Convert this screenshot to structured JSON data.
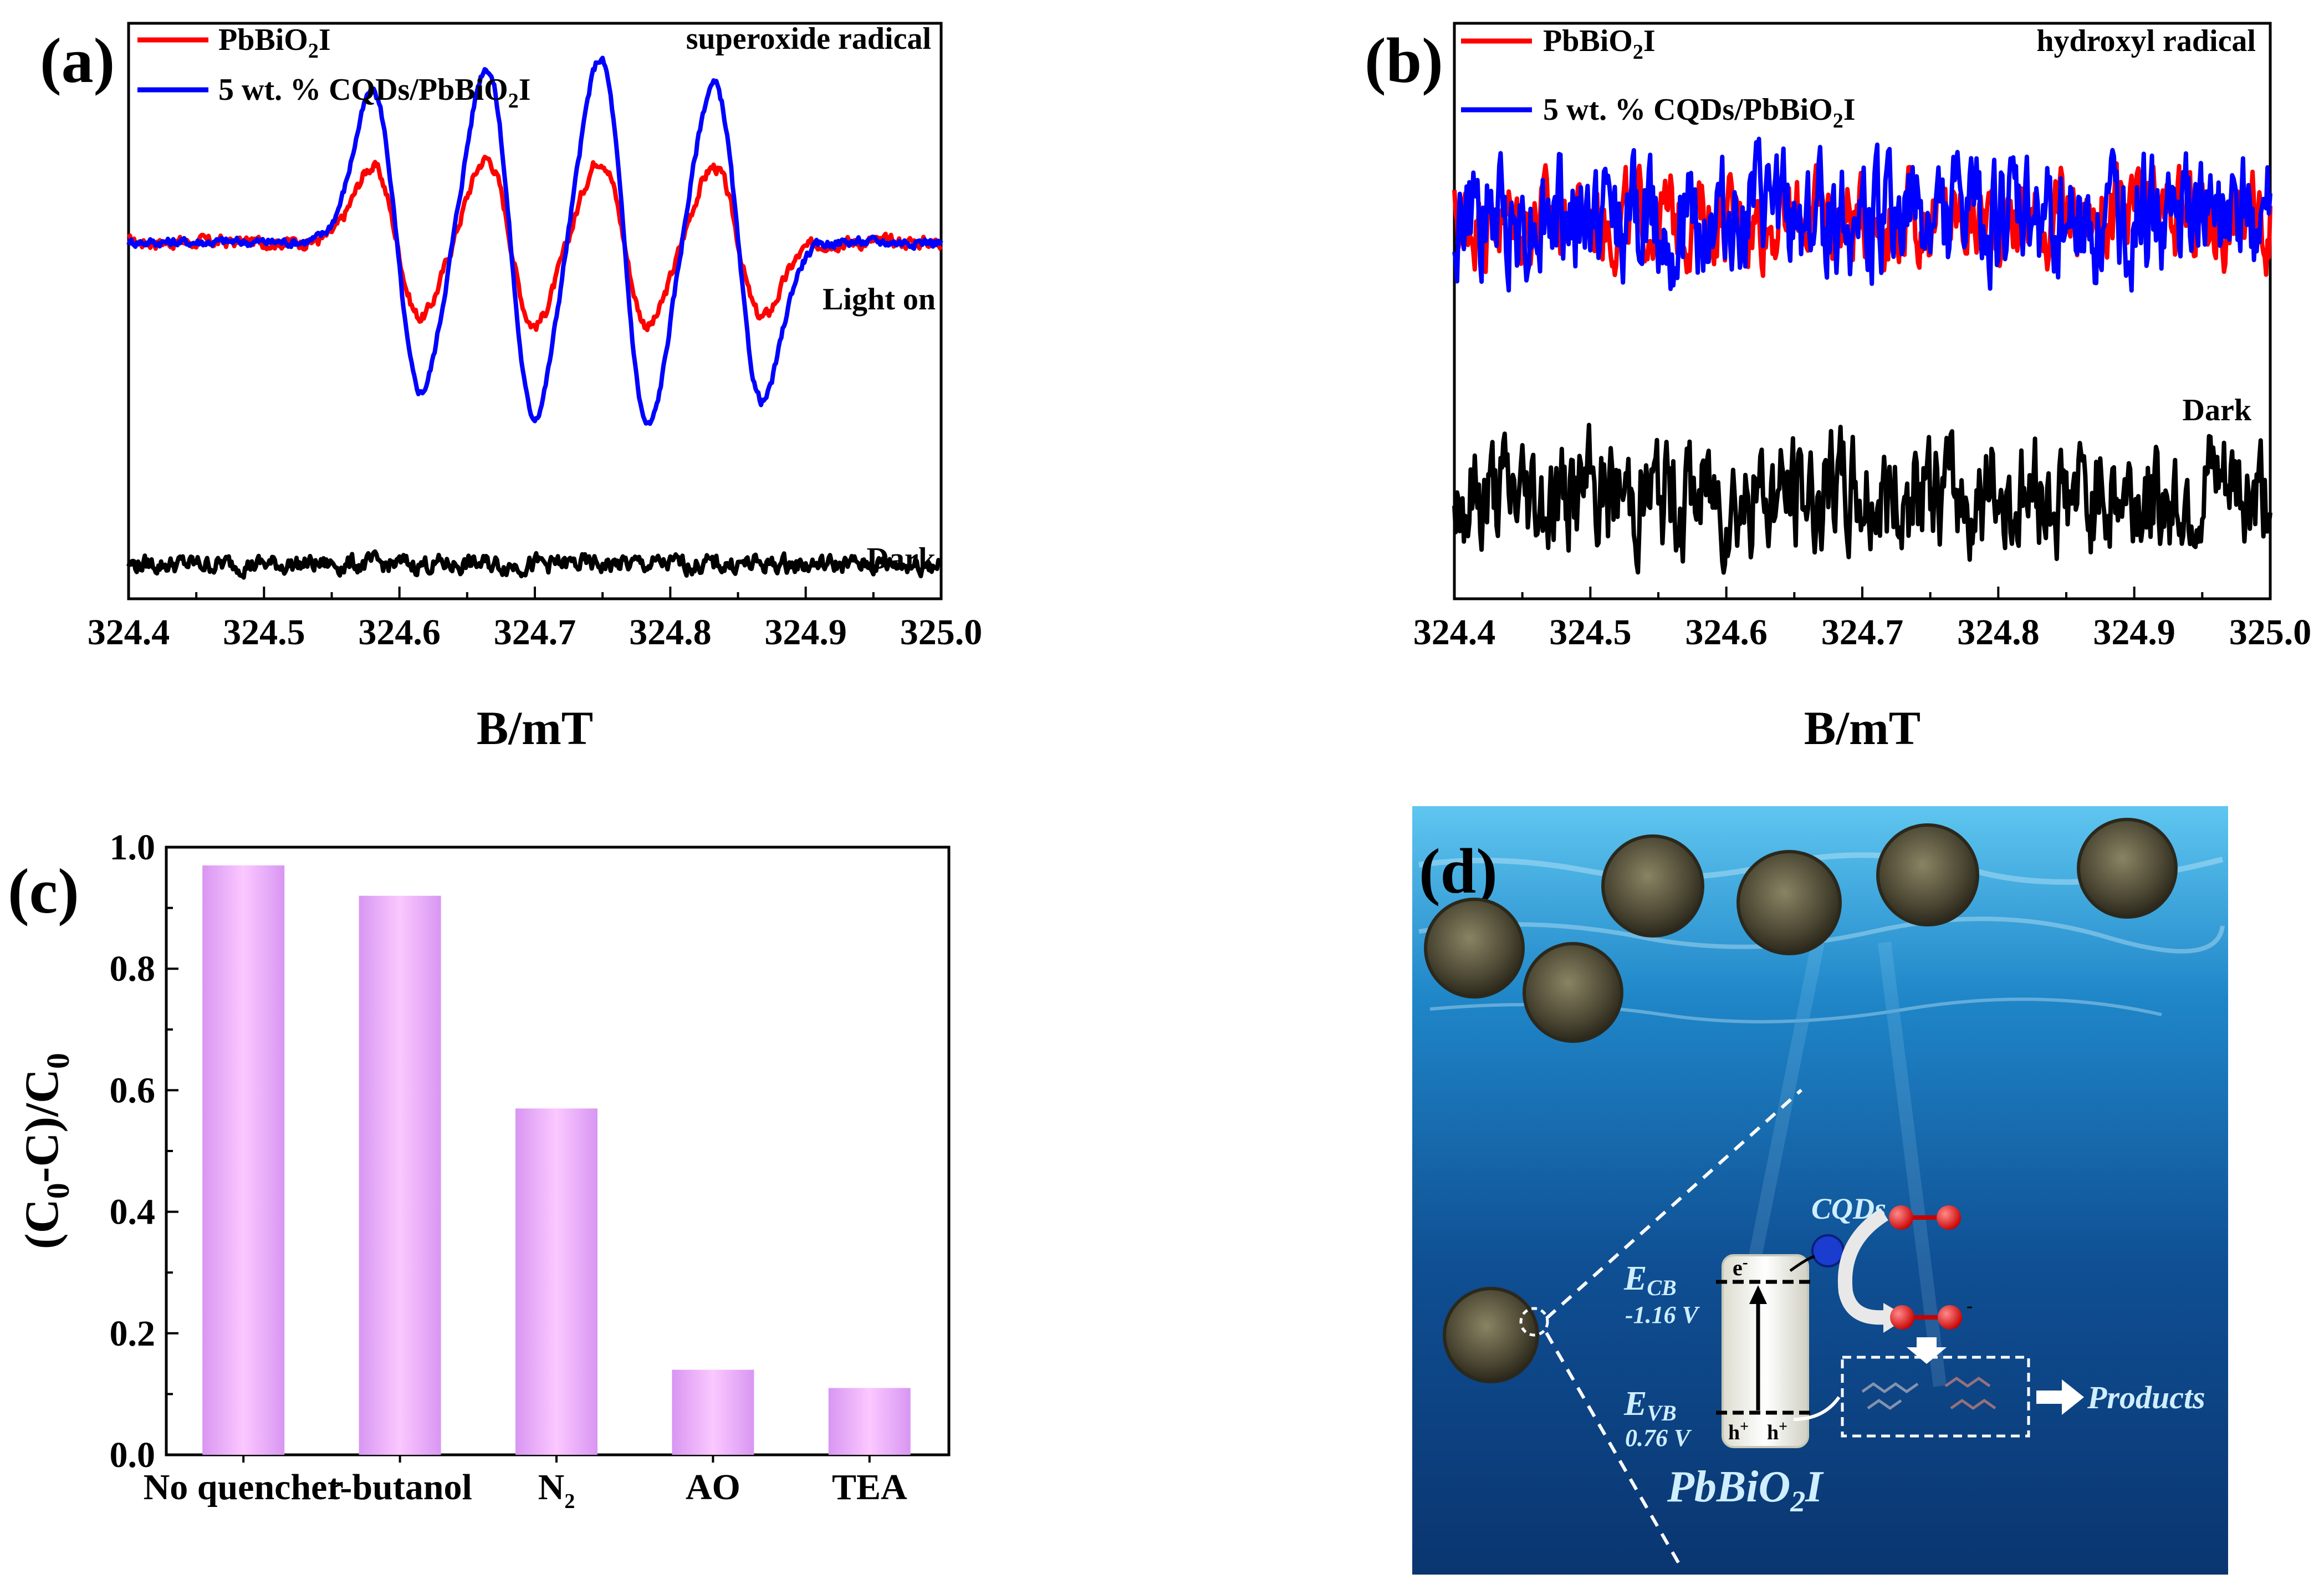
{
  "chart_data": [
    {
      "panel": "(a)",
      "type": "line",
      "title": "superoxide radical",
      "xlabel": "B/mT",
      "ylabel": "",
      "xlim": [
        324.4,
        325.0
      ],
      "xticks": [
        "324.4",
        "324.5",
        "324.6",
        "324.7",
        "324.8",
        "324.9",
        "325.0"
      ],
      "series": [
        {
          "name": "PbBiO2I",
          "label_main": "PbBiO",
          "label_sub": "2",
          "label_tail": "I",
          "color": "#ff0000",
          "offset": 0.62,
          "amplitude": 0.13,
          "noise": 0.008,
          "peaks": [
            0.18,
            0.2,
            0.2,
            0.18
          ]
        },
        {
          "name": "5 wt. % CQDs/PbBiO2I",
          "label_main": "5 wt. % CQDs/PbBiO",
          "label_sub": "2",
          "label_tail": "I",
          "color": "#0000ff",
          "offset": 0.62,
          "amplitude": 0.3,
          "noise": 0.006,
          "peaks": [
            0.36,
            0.42,
            0.44,
            0.38
          ]
        },
        {
          "name": "Dark",
          "color": "#000000",
          "offset": 0.06,
          "amplitude": 0.0,
          "noise": 0.012,
          "peaks": []
        }
      ],
      "annotations": [
        "Light on",
        "Dark"
      ]
    },
    {
      "panel": "(b)",
      "type": "line",
      "title": "hydroxyl radical",
      "xlabel": "B/mT",
      "ylabel": "",
      "xlim": [
        324.4,
        325.0
      ],
      "xticks": [
        "324.4",
        "324.5",
        "324.6",
        "324.7",
        "324.8",
        "324.9",
        "325.0"
      ],
      "series": [
        {
          "name": "PbBiO2I",
          "label_main": "PbBiO",
          "label_sub": "2",
          "label_tail": "I",
          "color": "#ff0000",
          "offset": 0.66,
          "noise": 0.055
        },
        {
          "name": "5 wt. % CQDs/PbBiO2I",
          "label_main": "5 wt. % CQDs/PbBiO",
          "label_sub": "2",
          "label_tail": "I",
          "color": "#0000ff",
          "offset": 0.66,
          "noise": 0.075
        },
        {
          "name": "Dark",
          "color": "#000000",
          "offset": 0.18,
          "noise": 0.075
        }
      ],
      "annotations": [
        "Dark"
      ]
    },
    {
      "panel": "(c)",
      "type": "bar",
      "title": "",
      "xlabel": "",
      "ylabel_parts": [
        "(C",
        "0",
        "-C)/C",
        "0"
      ],
      "ylim": [
        0.0,
        1.0
      ],
      "yticks": [
        "0.0",
        "0.2",
        "0.4",
        "0.6",
        "0.8",
        "1.0"
      ],
      "categories": [
        {
          "main": "No quencher",
          "sub": ""
        },
        {
          "main": "t-butanol",
          "sub": ""
        },
        {
          "main": "N",
          "sub": "2"
        },
        {
          "main": "AO",
          "sub": ""
        },
        {
          "main": "TEA",
          "sub": ""
        }
      ],
      "values": [
        0.97,
        0.92,
        0.57,
        0.14,
        0.11
      ],
      "bar_color": "#f0a8ff"
    }
  ],
  "panel_d": {
    "tag": "(d)",
    "labels": {
      "cqds": "CQDs",
      "ecb_main": "E",
      "ecb_sub": "CB",
      "ecb_value": "-1.16 V",
      "evb_main": "E",
      "evb_sub": "VB",
      "evb_value": "0.76 V",
      "electron": "e",
      "electron_charge": "-",
      "hole": "h",
      "hole_charge": "+",
      "products": "Products",
      "material_main": "PbBiO",
      "material_sub": "2",
      "material_tail": "I"
    }
  }
}
